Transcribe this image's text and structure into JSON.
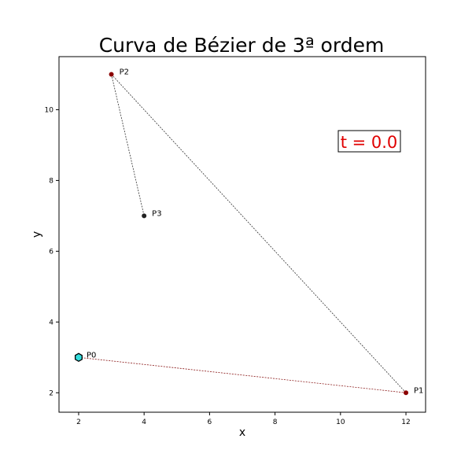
{
  "chart_data": {
    "type": "line",
    "title": "Curva de Bézier de 3ª ordem",
    "xlabel": "x",
    "ylabel": "y",
    "xlim": [
      1.4,
      12.6
    ],
    "ylim": [
      1.45,
      11.5
    ],
    "xticks": [
      2,
      4,
      6,
      8,
      10,
      12
    ],
    "yticks": [
      2,
      4,
      6,
      8,
      10
    ],
    "grid": false,
    "control_points": [
      {
        "label": "P0",
        "x": 2,
        "y": 3
      },
      {
        "label": "P1",
        "x": 12,
        "y": 2
      },
      {
        "label": "P2",
        "x": 3,
        "y": 11
      },
      {
        "label": "P3",
        "x": 4,
        "y": 7
      }
    ],
    "segments": [
      {
        "from": "P0",
        "to": "P1",
        "color": "#8b1a1a"
      },
      {
        "from": "P1",
        "to": "P2",
        "color": "#333333"
      },
      {
        "from": "P2",
        "to": "P3",
        "color": "#333333"
      }
    ],
    "current_point": {
      "x": 2,
      "y": 3
    },
    "t_label": "t = 0.0",
    "colors": {
      "control_point": "#8b0000",
      "last_point": "#222222",
      "current_point_fill": "#33dddd",
      "t_text": "#e00000"
    }
  }
}
